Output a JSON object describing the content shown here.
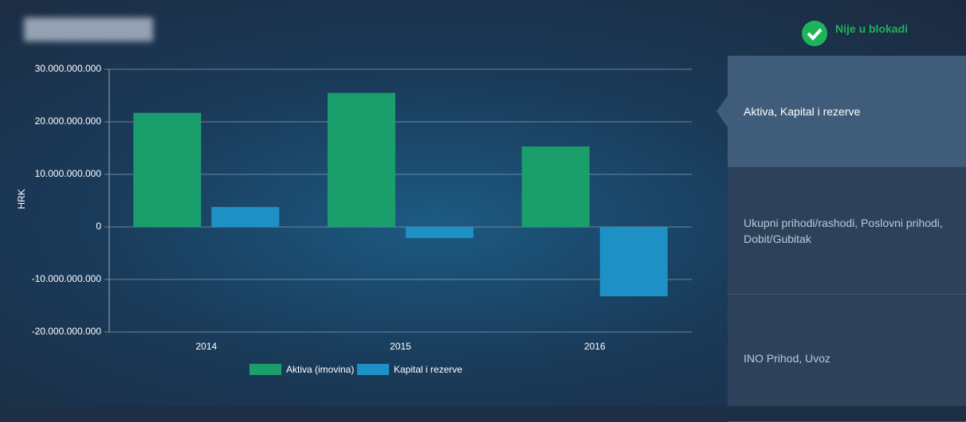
{
  "status": "Nije u blokadi",
  "menu": [
    "Aktiva, Kapital i rezerve",
    "Ukupni prihodi/rashodi, Poslovni prihodi, Dobit/Gubitak",
    "INO Prihod, Uvoz"
  ],
  "chart_data": {
    "type": "bar",
    "ylabel": "HRK",
    "categories": [
      "2014",
      "2015",
      "2016"
    ],
    "series": [
      {
        "name": "Aktiva (imovina)",
        "color": "#1a9e6c",
        "values": [
          21700000000,
          25500000000,
          15300000000
        ]
      },
      {
        "name": "Kapital i rezerve",
        "color": "#1d91c6",
        "values": [
          3800000000,
          -2100000000,
          -13200000000
        ]
      }
    ],
    "ylim": [
      -20000000000,
      30000000000
    ],
    "yticks": [
      {
        "value": -20000000000,
        "label": "-20.000.000.000"
      },
      {
        "value": -10000000000,
        "label": "-10.000.000.000"
      },
      0,
      {
        "value": 10000000000,
        "label": "10.000.000.000"
      },
      {
        "value": 20000000000,
        "label": "20.000.000.000"
      },
      {
        "value": 30000000000,
        "label": "30.000.000.000"
      }
    ],
    "grid": true
  }
}
